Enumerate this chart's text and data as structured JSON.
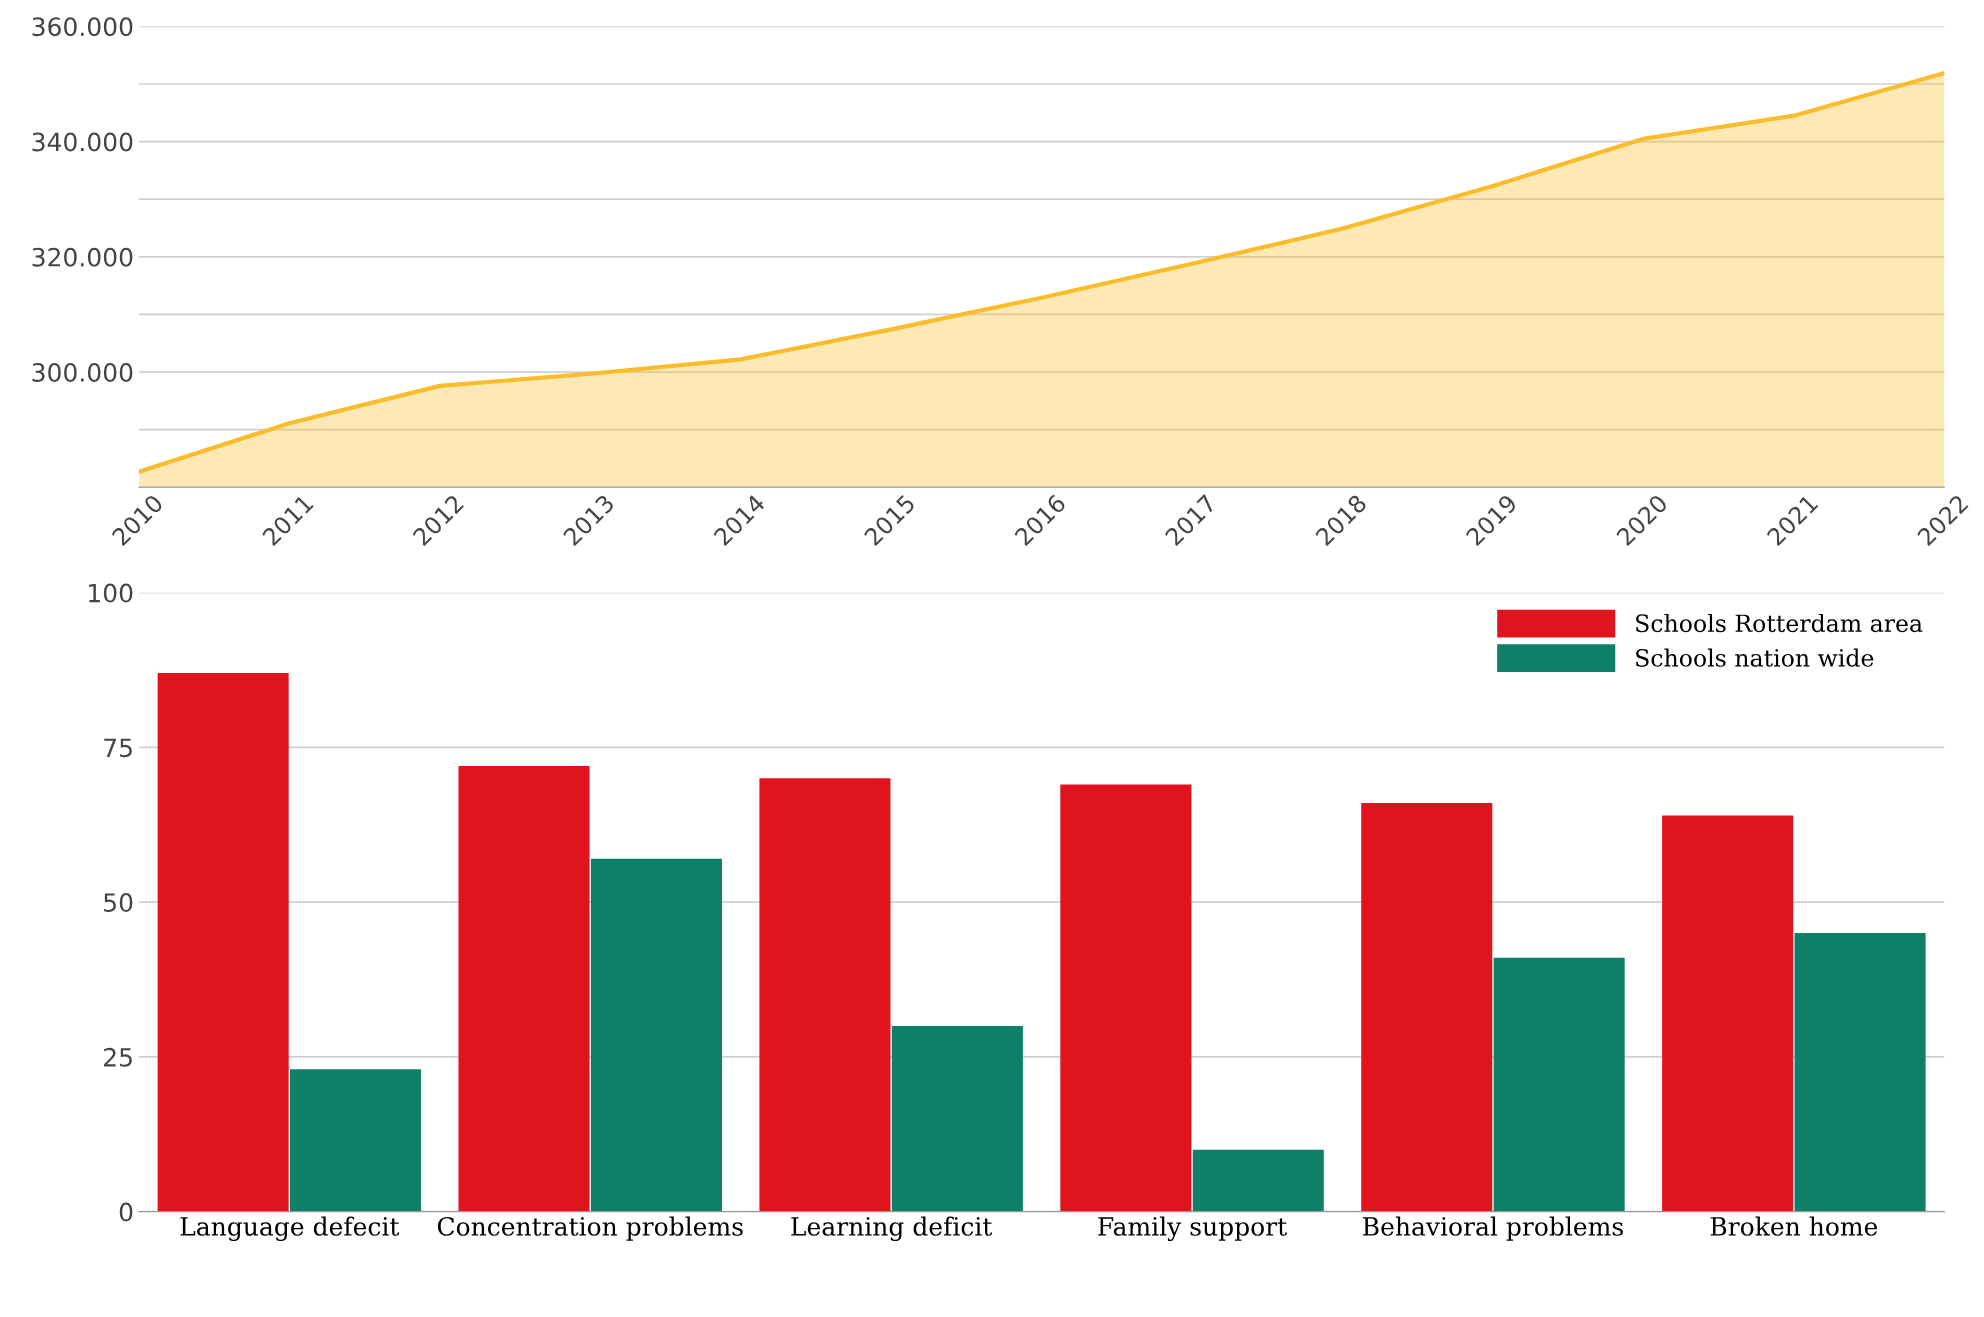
{
  "chart_data": [
    {
      "type": "area",
      "x": [
        2010,
        2011,
        2012,
        2013,
        2014,
        2015,
        2016,
        2017,
        2018,
        2019,
        2020,
        2021,
        2022
      ],
      "series": [
        {
          "color": "#fbbc2c",
          "values": [
            282700,
            291100,
            297600,
            299700,
            302200,
            307400,
            312900,
            318800,
            324900,
            332300,
            340500,
            344500,
            351900
          ]
        }
      ],
      "xlim": [
        2010,
        2022
      ],
      "xticks": [
        2010,
        2011,
        2012,
        2013,
        2014,
        2015,
        2016,
        2017,
        2018,
        2019,
        2020,
        2021,
        2022
      ],
      "ylim": [
        280000,
        360000
      ],
      "yticks": [
        {
          "value": 280000,
          "label": null
        },
        {
          "value": 290000,
          "label": null
        },
        {
          "value": 300000,
          "label": "300.000"
        },
        {
          "value": 310000,
          "label": null
        },
        {
          "value": 320000,
          "label": "320.000"
        },
        {
          "value": 330000,
          "label": null
        },
        {
          "value": 340000,
          "label": "340.000"
        },
        {
          "value": 350000,
          "label": null
        },
        {
          "value": 360000,
          "label": "360.000"
        }
      ],
      "grid": "y"
    },
    {
      "type": "bar",
      "categories": [
        "Language defecit",
        "Concentration problems",
        "Learning deficit",
        "Family support",
        "Behavioral problems",
        "Broken home"
      ],
      "series": [
        {
          "name": "Schools Rotterdam area",
          "color": "#e0141e",
          "values": [
            87,
            72,
            70,
            69,
            66,
            64
          ]
        },
        {
          "name": "Schools nation wide",
          "color": "#0e8068",
          "values": [
            23,
            57,
            30,
            10,
            41,
            45
          ]
        }
      ],
      "ylim": [
        0,
        100
      ],
      "yticks": [
        0,
        25,
        50,
        75,
        100
      ],
      "grid": "y",
      "legend": "top right"
    }
  ]
}
